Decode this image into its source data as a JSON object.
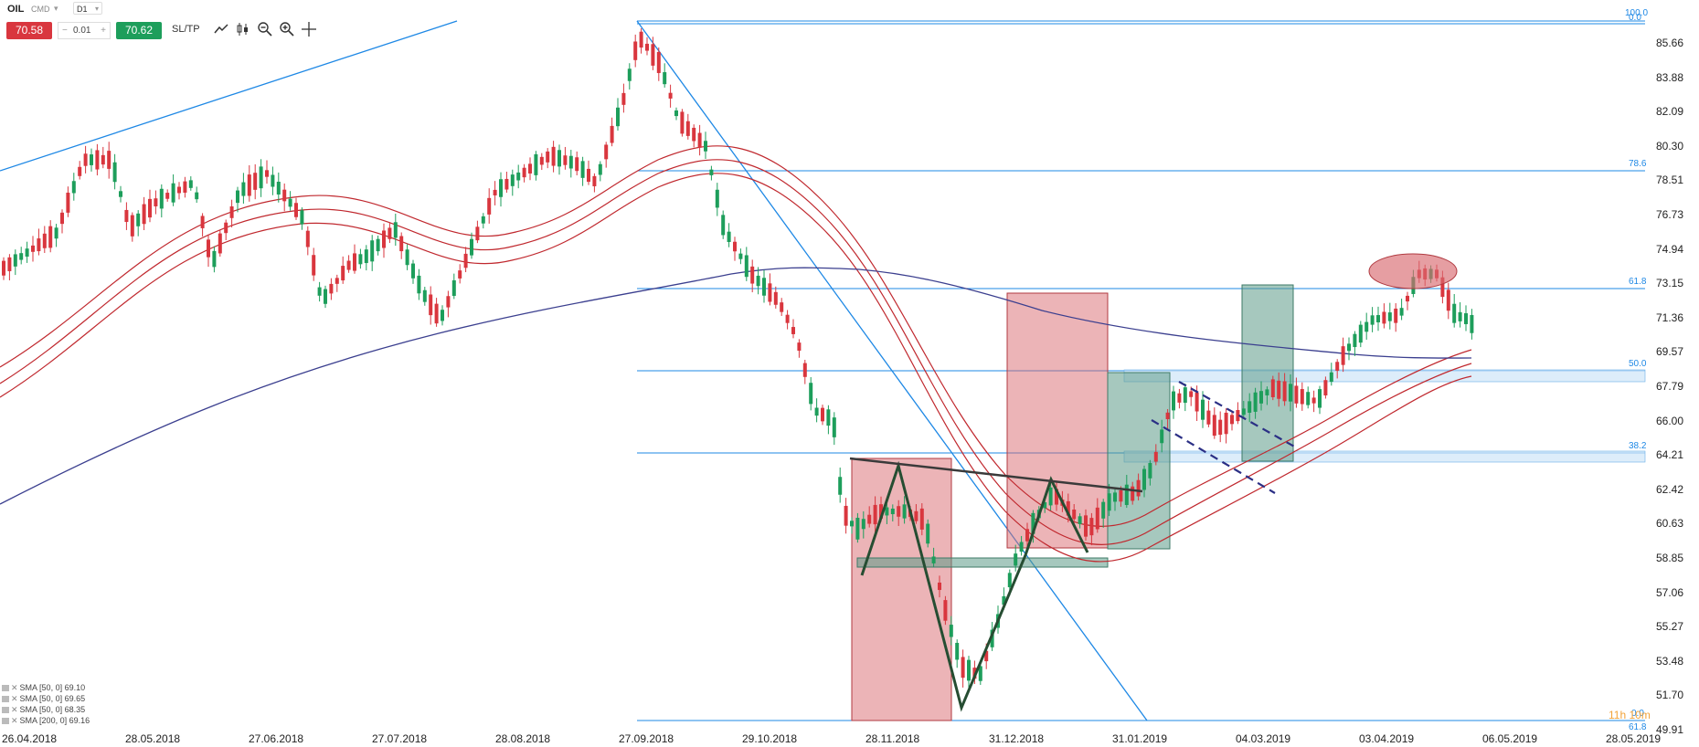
{
  "toolbar": {
    "symbol": "OIL",
    "exchange": "CMD",
    "timeframe": "D1",
    "sell_price": "70.58",
    "spread": "0.01",
    "buy_price": "70.62",
    "sltp_label": "SL/TP",
    "minus": "−",
    "plus": "+"
  },
  "price_axis": {
    "ticks": [
      "85.66",
      "83.88",
      "82.09",
      "80.30",
      "78.51",
      "76.73",
      "74.94",
      "73.15",
      "71.36",
      "69.57",
      "67.79",
      "66.00",
      "64.21",
      "62.42",
      "60.63",
      "58.85",
      "57.06",
      "55.27",
      "53.48",
      "51.70",
      "49.91"
    ]
  },
  "time_axis": {
    "ticks": [
      "26.04.2018",
      "28.05.2018",
      "27.06.2018",
      "27.07.2018",
      "28.08.2018",
      "27.09.2018",
      "29.10.2018",
      "28.11.2018",
      "31.12.2018",
      "31.01.2019",
      "04.03.2019",
      "03.04.2019",
      "06.05.2019",
      "28.05.2019"
    ]
  },
  "fib_levels": [
    {
      "label": "100.0"
    },
    {
      "label": "0.0"
    },
    {
      "label": "78.6"
    },
    {
      "label": "61.8"
    },
    {
      "label": "50.0"
    },
    {
      "label": "38.2"
    },
    {
      "label": "0.0"
    },
    {
      "label": "61.8"
    }
  ],
  "indicators": [
    {
      "label": "SMA [50, 0] 69.10"
    },
    {
      "label": "SMA [50, 0] 69.65"
    },
    {
      "label": "SMA [50, 0] 68.35"
    },
    {
      "label": "SMA [200, 0] 69.16"
    }
  ],
  "countdown": "11h 10m",
  "colors": {
    "bull": "#1d9e5b",
    "bear": "#d9363e",
    "sma50": "#c0282e",
    "sma200": "#3b3f8f",
    "fib": "#1e88e5",
    "sell": "#d9363e",
    "buy": "#1d9e5b"
  }
}
